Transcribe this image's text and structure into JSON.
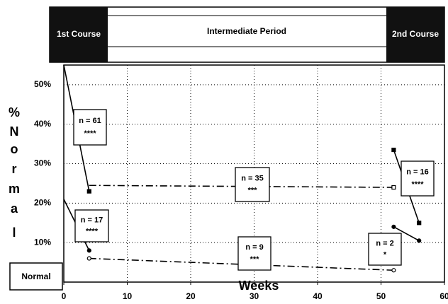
{
  "chart_data": {
    "type": "line",
    "header": {
      "left": "1st Course",
      "middle": "Intermediate Period",
      "right": "2nd Course"
    },
    "ylabel": [
      "%",
      "N",
      "o",
      "r",
      "m",
      "a",
      "l"
    ],
    "normal_label": "Normal",
    "xlabel": "Weeks",
    "xlim": [
      0,
      60
    ],
    "xticks": [
      0,
      10,
      20,
      30,
      40,
      50,
      60
    ],
    "ylim": [
      0,
      55
    ],
    "yticks": [
      {
        "value": 10,
        "label": "10%"
      },
      {
        "value": 20,
        "label": "20%"
      },
      {
        "value": 30,
        "label": "30%"
      },
      {
        "value": 40,
        "label": "40%"
      },
      {
        "value": 50,
        "label": "50%"
      }
    ],
    "grid": true,
    "series": [
      {
        "x": [
          0,
          4
        ],
        "values": [
          55,
          23
        ],
        "color": "#000000",
        "dash": "solid",
        "markers": [
          null,
          "filled-square"
        ]
      },
      {
        "x": [
          4,
          52
        ],
        "values": [
          24.5,
          24
        ],
        "color": "#000000",
        "dash": "dashdot",
        "markers": [
          null,
          "open-square"
        ]
      },
      {
        "x": [
          0,
          4
        ],
        "values": [
          21,
          8
        ],
        "color": "#000000",
        "dash": "solid",
        "markers": [
          null,
          "filled-circle"
        ]
      },
      {
        "x": [
          4,
          52
        ],
        "values": [
          6,
          3
        ],
        "color": "#000000",
        "dash": "dashdot",
        "markers": [
          "open-circle",
          "open-circle"
        ]
      },
      {
        "x": [
          52,
          56
        ],
        "values": [
          33.5,
          15
        ],
        "color": "#000000",
        "dash": "solid",
        "markers": [
          "filled-square",
          "filled-square"
        ]
      },
      {
        "x": [
          52,
          56
        ],
        "values": [
          14,
          10.5
        ],
        "color": "#000000",
        "dash": "solid",
        "markers": [
          "filled-circle",
          "filled-circle"
        ]
      }
    ],
    "annotations": [
      [
        "n = 61",
        "****"
      ],
      [
        "n = 17",
        "****"
      ],
      [
        "n = 35",
        "***"
      ],
      [
        "n = 9",
        "***"
      ],
      [
        "n = 2",
        "*"
      ],
      [
        "n = 16",
        "****"
      ]
    ]
  }
}
